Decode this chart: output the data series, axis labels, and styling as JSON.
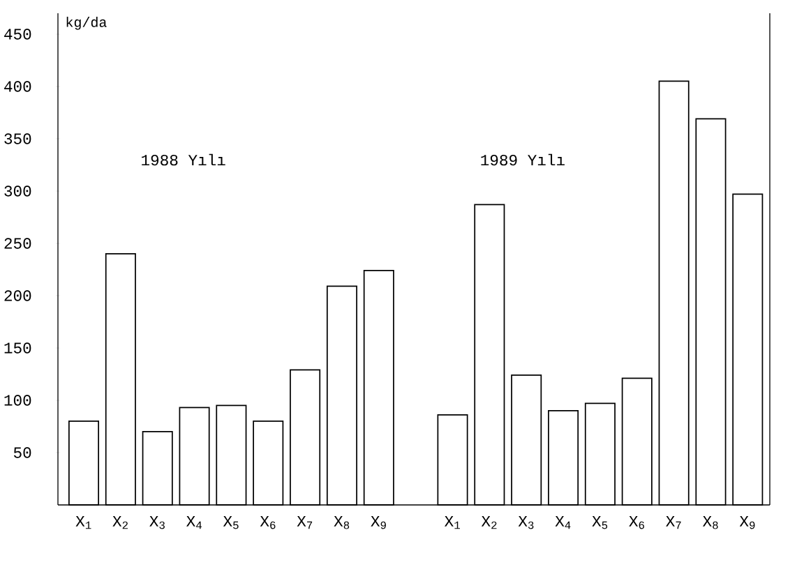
{
  "chart_data": {
    "type": "bar",
    "ylabel": "kg/da",
    "annotations": [
      "1988 Yılı",
      "1989 Yılı"
    ],
    "categories": [
      "X$_{1}$",
      "X$_{2}$",
      "X$_{3}$",
      "X$_{4}$",
      "X$_{5}$",
      "X$_{6}$",
      "X$_{7}$",
      "X$_{8}$",
      "X$_{9}$",
      null,
      "X$_{1}$",
      "X$_{2}$",
      "X$_{3}$",
      "X$_{4}$",
      "X$_{5}$",
      "X$_{6}$",
      "X$_{7}$",
      "X$_{8}$",
      "X$_{9}$"
    ],
    "values": [
      80,
      240,
      70,
      93,
      95,
      80,
      129,
      209,
      224,
      null,
      86,
      287,
      124,
      90,
      97,
      121,
      405,
      369,
      297
    ],
    "color": "#ffffff",
    "ylim": [
      0,
      470
    ],
    "yticks": [
      50,
      100,
      150,
      200,
      250,
      300,
      350,
      400,
      450
    ]
  }
}
